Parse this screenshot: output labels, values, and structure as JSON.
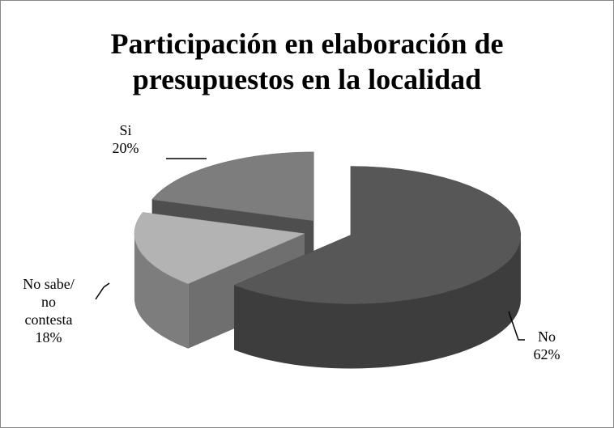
{
  "chart_data": {
    "type": "pie",
    "title": "Participación en elaboración de presupuestos en la localidad",
    "categories": [
      "No",
      "No sabe/ no contesta",
      "Si"
    ],
    "values": [
      62,
      18,
      20
    ],
    "value_labels": [
      "62%",
      "18%",
      "20%"
    ],
    "colors": [
      "#575757",
      "#b3b3b3",
      "#7d7d7d"
    ]
  }
}
